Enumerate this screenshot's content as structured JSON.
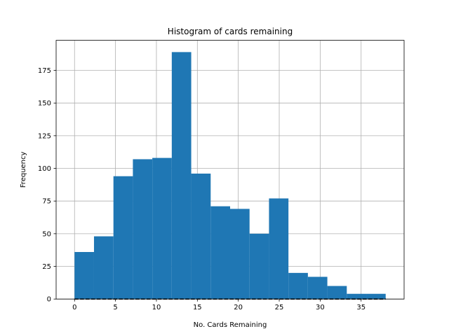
{
  "chart_data": {
    "type": "bar",
    "title": "Histogram of cards remaining",
    "xlabel": "No. Cards Remaining",
    "ylabel": "Frequency",
    "xlim": [
      -2.25,
      40.25
    ],
    "ylim": [
      0,
      198
    ],
    "grid": true,
    "bar_color": "#1f77b4",
    "bin_edges": [
      0,
      2.375,
      4.75,
      7.125,
      9.5,
      11.875,
      14.25,
      16.625,
      19,
      21.375,
      23.75,
      26.125,
      28.5,
      30.875,
      33.25,
      35.625,
      38
    ],
    "values": [
      36,
      48,
      94,
      107,
      108,
      189,
      96,
      71,
      69,
      50,
      77,
      20,
      17,
      10,
      4,
      4
    ],
    "xticks": [
      0,
      5,
      10,
      15,
      20,
      25,
      30,
      35
    ],
    "yticks": [
      0,
      25,
      50,
      75,
      100,
      125,
      150,
      175
    ],
    "reference_line": {
      "y": 0,
      "x_range": [
        0,
        38
      ],
      "style": "dashed",
      "color": "#000000"
    }
  }
}
